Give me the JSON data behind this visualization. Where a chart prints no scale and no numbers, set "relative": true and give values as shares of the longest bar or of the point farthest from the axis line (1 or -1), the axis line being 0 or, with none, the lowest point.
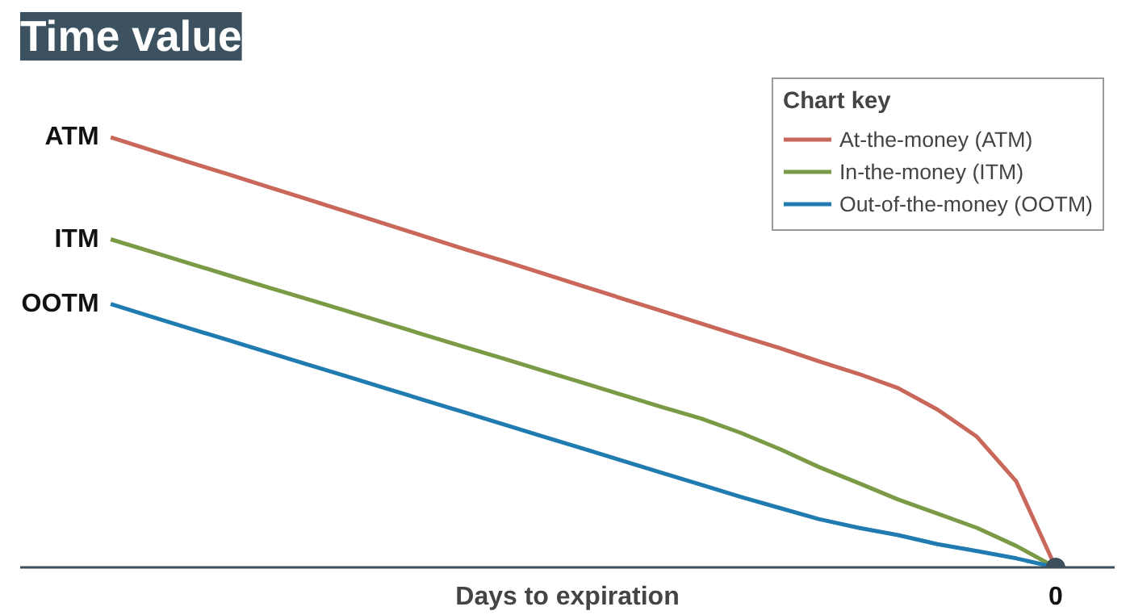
{
  "chart_data": {
    "type": "line",
    "title": "Time value",
    "xlabel": "Days to expiration",
    "relative": true,
    "annotations": [
      "ATM",
      "ITM",
      "OOTM",
      "0"
    ],
    "legend_title": "Chart key",
    "legend": "top right",
    "grid": false,
    "categories": [
      null,
      null,
      null,
      null,
      null,
      null,
      null,
      null,
      null,
      null,
      null,
      null,
      null,
      null,
      null,
      null,
      null,
      null,
      null,
      null,
      null,
      null,
      null,
      null,
      null
    ],
    "series": [
      {
        "name": "At-the-money (ATM)",
        "color": "#c8675a",
        "values": [
          1.0,
          0.971,
          0.942,
          0.914,
          0.885,
          0.856,
          0.827,
          0.798,
          0.769,
          0.74,
          0.712,
          0.683,
          0.654,
          0.625,
          0.596,
          0.567,
          0.538,
          0.51,
          0.479,
          0.45,
          0.417,
          0.367,
          0.304,
          0.2,
          0
        ]
      },
      {
        "name": "In-the-money (ITM)",
        "color": "#7a9a45",
        "values": [
          0.763,
          0.735,
          0.707,
          0.679,
          0.651,
          0.624,
          0.596,
          0.568,
          0.54,
          0.512,
          0.485,
          0.457,
          0.429,
          0.401,
          0.373,
          0.346,
          0.313,
          0.275,
          0.233,
          0.196,
          0.158,
          0.125,
          0.092,
          0.05,
          0
        ]
      },
      {
        "name": "Out-of-the-money (OOTM)",
        "color": "#1f7bb0",
        "values": [
          0.6125,
          0.584,
          0.556,
          0.528,
          0.5,
          0.472,
          0.444,
          0.416,
          0.388,
          0.36,
          0.332,
          0.304,
          0.276,
          0.248,
          0.22,
          0.192,
          0.164,
          0.138,
          0.112,
          0.092,
          0.075,
          0.054,
          0.038,
          0.021,
          0
        ]
      }
    ]
  }
}
